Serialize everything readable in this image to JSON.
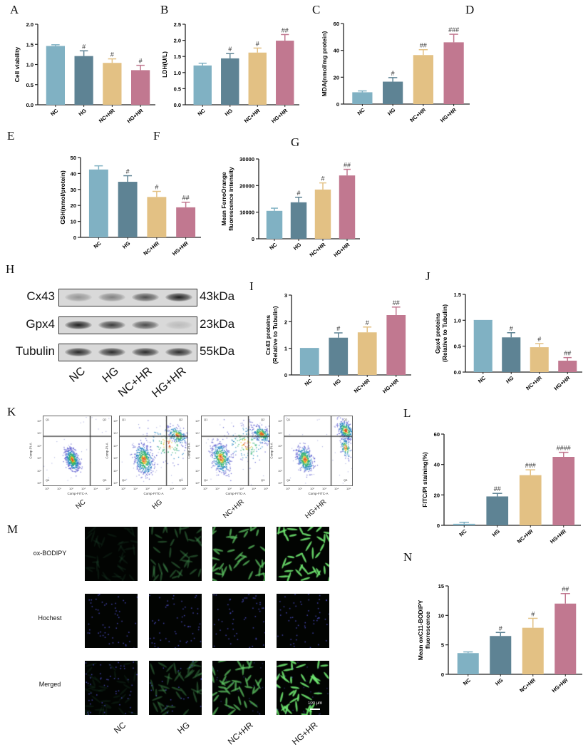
{
  "panel_labels": {
    "A": "A",
    "B": "B",
    "C": "C",
    "D": "D",
    "E": "E",
    "F": "F",
    "G": "G",
    "H": "H",
    "I": "I",
    "J": "J",
    "K": "K",
    "L": "L",
    "M": "M",
    "N": "N"
  },
  "colors": {
    "NC": "#80b1c3",
    "HG": "#5e8394",
    "NC+HR": "#e3c184",
    "HG+HR": "#c17890"
  },
  "chart_data": [
    {
      "id": "A",
      "type": "bar",
      "categories": [
        "NC",
        "HG",
        "NC+HR",
        "HG+HR"
      ],
      "values": [
        1.46,
        1.21,
        1.04,
        0.86
      ],
      "errors": [
        0.03,
        0.13,
        0.1,
        0.12
      ],
      "significance": [
        "",
        "#",
        "#",
        "#"
      ],
      "ylabel": [
        "Cell viability"
      ],
      "xlabel": "",
      "ylim": [
        0,
        2.0
      ],
      "yticks": [
        0,
        0.5,
        1.0,
        1.5,
        2.0
      ],
      "ytick_labels": [
        "0.0",
        "0.5",
        "1.0",
        "1.5",
        "2.0"
      ]
    },
    {
      "id": "B",
      "type": "bar",
      "categories": [
        "NC",
        "HG",
        "NC+HR",
        "HG+HR"
      ],
      "values": [
        1.22,
        1.44,
        1.62,
        1.99
      ],
      "errors": [
        0.07,
        0.15,
        0.14,
        0.19
      ],
      "significance": [
        "",
        "#",
        "#",
        "##"
      ],
      "ylabel": [
        "LDH(U/L)"
      ],
      "xlabel": "",
      "ylim": [
        0,
        2.5
      ],
      "yticks": [
        0,
        0.5,
        1.0,
        1.5,
        2.0,
        2.5
      ],
      "ytick_labels": [
        "0.0",
        "0.5",
        "1.0",
        "1.5",
        "2.0",
        "2.5"
      ]
    },
    {
      "id": "C",
      "type": "bar",
      "categories": [
        "NC",
        "HG",
        "NC+HR",
        "HG+HR"
      ],
      "values": [
        8.8,
        16.7,
        36.5,
        46.0
      ],
      "errors": [
        1.0,
        3.0,
        4.0,
        6.0
      ],
      "significance": [
        "",
        "#",
        "##",
        "###"
      ],
      "ylabel": [
        "MDA(nmol/mg protein)"
      ],
      "xlabel": "",
      "ylim": [
        0,
        60
      ],
      "yticks": [
        0,
        20,
        40,
        60
      ],
      "ytick_labels": [
        "0",
        "20",
        "40",
        "60"
      ]
    },
    {
      "id": "EF",
      "type": "bar",
      "categories": [
        "NC",
        "HG",
        "NC+HR",
        "HG+HR"
      ],
      "values": [
        42.5,
        34.8,
        25.3,
        18.8
      ],
      "errors": [
        2.3,
        3.8,
        3.5,
        3.2
      ],
      "significance": [
        "",
        "#",
        "#",
        "##"
      ],
      "ylabel": [
        "GSH(nmol/protein)"
      ],
      "xlabel": "",
      "ylim": [
        0,
        50
      ],
      "yticks": [
        0,
        10,
        20,
        30,
        40,
        50
      ],
      "ytick_labels": [
        "0",
        "10",
        "20",
        "30",
        "40",
        "50"
      ]
    },
    {
      "id": "G",
      "type": "bar",
      "categories": [
        "NC",
        "HG",
        "NC+HR",
        "HG+HR"
      ],
      "values": [
        10500,
        13700,
        18500,
        23800
      ],
      "errors": [
        1000,
        1900,
        2500,
        2300
      ],
      "significance": [
        "",
        "#",
        "#",
        "##"
      ],
      "ylabel": [
        "Mean FerroOrange",
        "fluorescence intensity"
      ],
      "xlabel": "",
      "ylim": [
        0,
        30000
      ],
      "yticks": [
        0,
        10000,
        20000,
        30000
      ],
      "ytick_labels": [
        "0",
        "10000",
        "20000",
        "30000"
      ]
    },
    {
      "id": "I",
      "type": "bar",
      "categories": [
        "NC",
        "HG",
        "NC+HR",
        "HG+HR"
      ],
      "values": [
        1.0,
        1.4,
        1.6,
        2.25
      ],
      "errors": [
        0,
        0.18,
        0.2,
        0.3
      ],
      "significance": [
        "",
        "#",
        "#",
        "##"
      ],
      "ylabel": [
        "Cx43 proteins",
        "(Relative to Tubulin)"
      ],
      "xlabel": "",
      "ylim": [
        0,
        3
      ],
      "yticks": [
        0,
        1,
        2,
        3
      ],
      "ytick_labels": [
        "0",
        "1",
        "2",
        "3"
      ]
    },
    {
      "id": "J",
      "type": "bar",
      "categories": [
        "NC",
        "HG",
        "NC+HR",
        "HG+HR"
      ],
      "values": [
        1.0,
        0.67,
        0.48,
        0.22
      ],
      "errors": [
        0,
        0.09,
        0.07,
        0.06
      ],
      "significance": [
        "",
        "#",
        "#",
        "##"
      ],
      "ylabel": [
        "Gpx4 proteins",
        "(Relative to Tubulin)"
      ],
      "xlabel": "",
      "ylim": [
        0,
        1.5
      ],
      "yticks": [
        0,
        0.5,
        1.0,
        1.5
      ],
      "ytick_labels": [
        "0.0",
        "0.5",
        "1.0",
        "1.5"
      ]
    },
    {
      "id": "L",
      "type": "bar",
      "categories": [
        "NC",
        "HG",
        "NC+HR",
        "HG+HR"
      ],
      "values": [
        1.0,
        19.0,
        33.0,
        45.0
      ],
      "errors": [
        1.0,
        2.0,
        3.5,
        3.0
      ],
      "significance": [
        "",
        "##",
        "###",
        "####"
      ],
      "ylabel": [
        "FITC/PI staining(%)"
      ],
      "xlabel": "",
      "ylim": [
        0,
        60
      ],
      "yticks": [
        0,
        20,
        40,
        60
      ],
      "ytick_labels": [
        "0",
        "20",
        "40",
        "60"
      ]
    },
    {
      "id": "N",
      "type": "bar",
      "categories": [
        "NC",
        "HG",
        "NC+HR",
        "HG+HR"
      ],
      "values": [
        3.6,
        6.5,
        7.9,
        12.0
      ],
      "errors": [
        0.2,
        0.6,
        1.6,
        1.7
      ],
      "significance": [
        "",
        "#",
        "#",
        "##"
      ],
      "ylabel": [
        "Mean oxC11-BODIPY",
        "fluorescence"
      ],
      "xlabel": "",
      "ylim": [
        0,
        15
      ],
      "yticks": [
        0,
        5,
        10,
        15
      ],
      "ytick_labels": [
        "0",
        "5",
        "10",
        "15"
      ]
    }
  ],
  "western_blot": {
    "lanes": [
      "NC",
      "HG",
      "NC+HR",
      "HG+HR"
    ],
    "rows": [
      {
        "protein": "Cx43",
        "size": "43kDa",
        "band_intensity": [
          0.35,
          0.45,
          0.7,
          0.95
        ]
      },
      {
        "protein": "Gpx4",
        "size": "23kDa",
        "band_intensity": [
          0.95,
          0.8,
          0.72,
          0.15
        ]
      },
      {
        "protein": "Tubulin",
        "size": "55kDa",
        "band_intensity": [
          0.9,
          0.88,
          0.88,
          0.88
        ]
      }
    ]
  },
  "flow_cytometry": {
    "groups": [
      "NC",
      "HG",
      "NC+HR",
      "HG+HR"
    ],
    "quadrants": [
      "Q1",
      "Q2",
      "Q3",
      "Q4"
    ],
    "xlabel": "Comp-FITC-A",
    "ylabel": "Comp-PI-A",
    "tick_labels": [
      "10⁰",
      "10¹",
      "10²",
      "10³",
      "10⁴",
      "10⁵"
    ]
  },
  "microscopy": {
    "rows": [
      "ox-BODIPY",
      "Hochest",
      "Merged"
    ],
    "groups": [
      "NC",
      "HG",
      "NC+HR",
      "HG+HR"
    ],
    "green_intensity": [
      0.05,
      0.35,
      0.7,
      0.9
    ],
    "scale_bar": "100 μm"
  }
}
